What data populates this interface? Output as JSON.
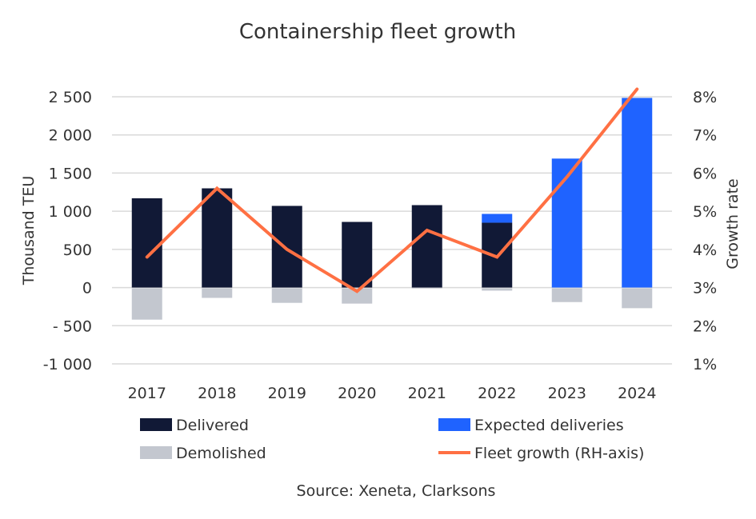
{
  "chart_data": {
    "type": "bar",
    "title": "Containership fleet growth",
    "source": "Source: Xeneta, Clarksons",
    "categories": [
      "2017",
      "2018",
      "2019",
      "2020",
      "2021",
      "2022",
      "2023",
      "2024"
    ],
    "ylabel": "Thousand TEU",
    "y2label": "Growth rate",
    "ylim": [
      -1000,
      2500
    ],
    "y2lim": [
      1,
      8
    ],
    "yticks": [
      -1000,
      -500,
      0,
      500,
      1000,
      1500,
      2000,
      2500
    ],
    "ytick_labels": [
      "-1 000",
      "- 500",
      "0",
      "500",
      "1 000",
      "1 500",
      "2 000",
      "2 500"
    ],
    "y2ticks": [
      1,
      2,
      3,
      4,
      5,
      6,
      7,
      8
    ],
    "y2tick_labels": [
      "1%",
      "2%",
      "3%",
      "4%",
      "5%",
      "6%",
      "7%",
      "8%"
    ],
    "grid": true,
    "legend_placement": "bottom",
    "series": [
      {
        "name": "Delivered",
        "type": "bar",
        "color": "#111936",
        "values": [
          1170,
          1300,
          1070,
          860,
          1080,
          850,
          0,
          0
        ]
      },
      {
        "name": "Expected deliveries",
        "type": "bar",
        "color": "#1f63ff",
        "values": [
          0,
          0,
          0,
          0,
          0,
          115,
          1690,
          2485
        ]
      },
      {
        "name": "Demolished",
        "type": "bar",
        "color": "#c3c7cf",
        "values": [
          -410,
          -125,
          -190,
          -200,
          -5,
          -30,
          -180,
          -260
        ]
      },
      {
        "name": "Fleet growth (RH-axis)",
        "type": "line",
        "axis": "right",
        "color": "#ff7043",
        "values": [
          3.8,
          5.6,
          4.0,
          2.9,
          4.5,
          3.8,
          5.9,
          8.2
        ]
      }
    ]
  }
}
